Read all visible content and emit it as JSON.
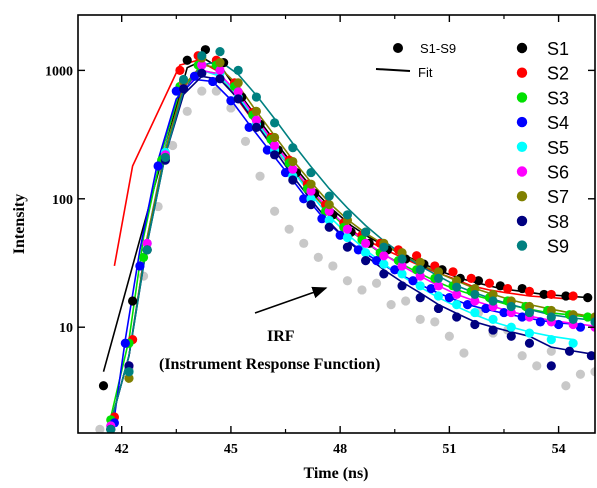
{
  "chart_data": {
    "type": "scatter",
    "xlabel": "Time (ns)",
    "ylabel": "Intensity",
    "xlim": [
      40.8,
      55.0
    ],
    "ylim": [
      1.5,
      2700
    ],
    "yscale": "log",
    "xticks": [
      42,
      45,
      48,
      51,
      54
    ],
    "xtick_labels": [
      "42",
      "45",
      "48",
      "51",
      "54"
    ],
    "yticks": [
      10,
      100,
      1000
    ],
    "ytick_labels": [
      "10",
      "100",
      "1000"
    ],
    "grid": false,
    "legend_position": "right",
    "legend_type": {
      "dot_label": "S1-S9",
      "line_label": "Fit"
    },
    "annotation": {
      "line1": "IRF",
      "line2": "(Instrument Response Function)",
      "arrow_to": [
        47.9,
        23
      ]
    },
    "irf": {
      "color": "#c8c8c8",
      "x": [
        41.4,
        41.8,
        42.2,
        42.6,
        43.0,
        43.4,
        43.8,
        44.2,
        44.6,
        45.0,
        45.4,
        45.8,
        46.2,
        46.6,
        47.0,
        47.4,
        47.8,
        48.2,
        48.6,
        49.0,
        49.4,
        49.8,
        50.2,
        50.6,
        51.0,
        51.4,
        51.8,
        52.2,
        52.6,
        53.0,
        53.4,
        53.8,
        54.2,
        54.6,
        55.0
      ],
      "y": [
        1.6,
        2.0,
        4.7,
        25,
        87,
        260,
        480,
        690,
        690,
        510,
        280,
        150,
        80,
        58,
        45,
        35,
        30,
        23,
        19.5,
        22,
        15,
        16,
        11.5,
        11,
        8.5,
        6.3,
        13,
        9,
        9.5,
        6,
        5,
        6.5,
        3.5,
        4.3,
        4.5
      ]
    },
    "series": [
      {
        "name": "S1",
        "color": "#000000",
        "x": [
          41.5,
          42.3,
          43.8,
          44.3,
          44.8,
          45.3,
          45.8,
          46.3,
          46.8,
          47.3,
          47.8,
          48.3,
          48.8,
          49.3,
          49.8,
          50.3,
          50.8,
          51.3,
          51.8,
          52.4,
          53.0,
          53.6,
          54.2,
          54.8
        ],
        "y": [
          3.5,
          16,
          1200,
          1450,
          1150,
          620,
          380,
          240,
          160,
          110,
          75,
          55,
          45,
          40,
          34,
          31,
          28,
          24,
          23,
          21,
          20,
          18,
          17.5,
          17
        ],
        "fit_y": [
          4.5,
          30,
          1050,
          1220,
          1000,
          620,
          400,
          260,
          170,
          115,
          82,
          62,
          50,
          42,
          36,
          31,
          27,
          24,
          22,
          20,
          19,
          18,
          17.5,
          17
        ]
      },
      {
        "name": "S2",
        "color": "#ff0000",
        "x": [
          41.8,
          42.3,
          43.6,
          44.1,
          44.6,
          45.1,
          45.6,
          46.1,
          46.6,
          47.1,
          47.6,
          48.1,
          48.6,
          49.1,
          49.6,
          50.1,
          50.6,
          51.1,
          51.6,
          52.1,
          52.6,
          53.2,
          53.8,
          54.4
        ],
        "y": [
          2,
          8,
          1000,
          1300,
          1200,
          800,
          470,
          300,
          200,
          130,
          90,
          65,
          52,
          45,
          40,
          36,
          30,
          27,
          24,
          22,
          20,
          19,
          18,
          17.5
        ],
        "fit_y": [
          30,
          180,
          1100,
          1200,
          1000,
          640,
          410,
          270,
          180,
          120,
          85,
          63,
          50,
          42,
          36,
          31,
          27,
          24,
          21,
          19.5,
          18.5,
          17.5,
          17,
          16.5
        ]
      },
      {
        "name": "S3",
        "color": "#00e000",
        "x": [
          41.7,
          42.2,
          42.6,
          43.1,
          43.6,
          44.1,
          44.6,
          45.1,
          45.6,
          46.1,
          46.6,
          47.1,
          47.6,
          48.1,
          48.6,
          49.1,
          49.6,
          50.1,
          50.6,
          51.1,
          51.6,
          52.1,
          52.6,
          53.1,
          53.7,
          54.3,
          54.8
        ],
        "y": [
          1.9,
          7.5,
          35,
          200,
          750,
          1100,
          1100,
          750,
          450,
          290,
          190,
          120,
          80,
          60,
          48,
          38,
          33,
          28,
          24,
          21,
          19,
          17,
          16,
          14.5,
          13.5,
          12.5,
          12
        ],
        "fit_y": [
          2,
          8,
          50,
          230,
          700,
          1000,
          950,
          680,
          440,
          290,
          190,
          125,
          85,
          62,
          48,
          38,
          32,
          27,
          23,
          20,
          18,
          16.5,
          15,
          14,
          13,
          12.5,
          12
        ]
      },
      {
        "name": "S4",
        "color": "#0000ff",
        "x": [
          41.8,
          42.1,
          42.5,
          43.0,
          43.5,
          44.0,
          44.5,
          45.0,
          45.5,
          46.0,
          46.5,
          47.0,
          47.5,
          48.0,
          48.5,
          49.0,
          49.5,
          50.0,
          50.5,
          51.0,
          51.5,
          52.0,
          52.5,
          53.0,
          53.5,
          54.0,
          54.6
        ],
        "y": [
          1.8,
          7.5,
          30,
          180,
          690,
          900,
          820,
          580,
          360,
          240,
          160,
          100,
          70,
          52,
          40,
          33,
          28,
          23,
          20,
          17,
          15,
          14,
          13,
          12,
          11,
          10.5,
          10
        ],
        "fit_y": [
          2,
          8,
          40,
          200,
          600,
          850,
          820,
          590,
          380,
          250,
          165,
          108,
          73,
          53,
          41,
          33,
          27,
          23,
          19.5,
          17,
          15,
          13.8,
          12.8,
          12,
          11.3,
          10.8,
          10.5
        ]
      },
      {
        "name": "S5",
        "color": "#00ffff",
        "x": [
          41.7,
          42.2,
          42.7,
          43.2,
          43.7,
          44.2,
          44.7,
          45.2,
          45.7,
          46.2,
          46.7,
          47.2,
          47.7,
          48.2,
          48.7,
          49.2,
          49.7,
          50.2,
          50.7,
          51.2,
          51.7,
          52.2,
          52.7,
          53.2,
          53.8,
          54.4
        ],
        "y": [
          1.7,
          4.5,
          45,
          230,
          800,
          1100,
          950,
          620,
          380,
          240,
          150,
          100,
          68,
          50,
          38,
          31,
          26,
          21,
          17.5,
          15,
          13,
          11.5,
          10,
          9,
          8,
          7.5
        ],
        "fit_y": [
          1.8,
          6,
          50,
          250,
          720,
          1000,
          900,
          630,
          400,
          255,
          165,
          108,
          73,
          53,
          40,
          31,
          25,
          20.5,
          17,
          14.5,
          12.5,
          11,
          10,
          9.2,
          8.5,
          8
        ]
      },
      {
        "name": "S6",
        "color": "#ff00ff",
        "x": [
          41.7,
          42.2,
          42.7,
          43.2,
          43.7,
          44.2,
          44.7,
          45.2,
          45.7,
          46.2,
          46.7,
          47.2,
          47.7,
          48.2,
          48.7,
          49.2,
          49.7,
          50.2,
          50.7,
          51.2,
          51.7,
          52.2,
          52.7,
          53.2,
          53.8,
          54.4,
          55.0
        ],
        "y": [
          1.7,
          5,
          45,
          220,
          800,
          1100,
          1000,
          680,
          410,
          260,
          170,
          115,
          80,
          58,
          45,
          36,
          30,
          25,
          21,
          18,
          16,
          14.5,
          13,
          12,
          11,
          10.5,
          10
        ],
        "fit_y": [
          1.8,
          6,
          50,
          240,
          720,
          1000,
          930,
          660,
          420,
          270,
          175,
          118,
          82,
          60,
          46,
          37,
          30,
          25,
          21,
          18,
          16,
          14.5,
          13.2,
          12.2,
          11.3,
          10.7,
          10.2
        ]
      },
      {
        "name": "S7",
        "color": "#808000",
        "x": [
          41.7,
          42.2,
          42.7,
          43.2,
          43.7,
          44.2,
          44.7,
          45.2,
          45.7,
          46.2,
          46.7,
          47.2,
          47.7,
          48.2,
          48.7,
          49.2,
          49.7,
          50.2,
          50.7,
          51.2,
          51.7,
          52.2,
          52.7,
          53.2,
          53.8,
          54.4,
          55.0
        ],
        "y": [
          1.6,
          4,
          40,
          210,
          820,
          1250,
          1150,
          800,
          480,
          300,
          195,
          130,
          90,
          68,
          55,
          45,
          38,
          32,
          27,
          23,
          20,
          18,
          16,
          14.5,
          13.5,
          12.5,
          12
        ],
        "fit_y": [
          1.8,
          6,
          50,
          240,
          760,
          1100,
          1050,
          760,
          480,
          310,
          200,
          135,
          93,
          69,
          54,
          44,
          37,
          31,
          26.5,
          23,
          20,
          18,
          16.3,
          15,
          13.8,
          12.8,
          12
        ]
      },
      {
        "name": "S8",
        "color": "#000080",
        "x": [
          41.7,
          42.2,
          42.7,
          43.2,
          43.7,
          44.2,
          44.7,
          45.2,
          45.7,
          46.2,
          46.7,
          47.2,
          47.7,
          48.2,
          48.7,
          49.2,
          49.7,
          50.2,
          50.7,
          51.2,
          51.7,
          52.2,
          52.7,
          53.2,
          53.8,
          54.3,
          54.9
        ],
        "y": [
          1.6,
          5,
          40,
          200,
          720,
          950,
          860,
          600,
          360,
          220,
          140,
          90,
          60,
          42,
          33,
          26,
          21,
          17,
          14,
          12,
          10.5,
          9.5,
          8.5,
          7.5,
          5,
          6.5,
          6
        ],
        "fit_y": [
          1.8,
          6,
          45,
          220,
          650,
          900,
          850,
          600,
          380,
          240,
          150,
          98,
          66,
          47,
          36,
          28,
          22.5,
          18.5,
          15,
          12.8,
          11,
          10,
          9.2,
          8.5,
          7,
          6.6,
          6.2
        ]
      },
      {
        "name": "S9",
        "color": "#008080",
        "x": [
          41.7,
          42.2,
          42.7,
          43.2,
          43.7,
          44.2,
          44.7,
          45.2,
          45.7,
          46.2,
          46.7,
          47.2,
          47.7,
          48.2,
          48.7,
          49.2,
          49.7,
          50.2,
          50.7,
          51.2,
          51.7,
          52.2,
          52.7,
          53.2,
          53.8,
          54.4,
          55.0
        ],
        "y": [
          1.6,
          4.5,
          40,
          210,
          850,
          1300,
          1400,
          1000,
          620,
          390,
          250,
          160,
          105,
          75,
          55,
          42,
          34,
          28,
          24,
          20.5,
          18,
          16,
          14.5,
          13,
          12,
          11.5,
          11
        ],
        "fit_y": [
          1.8,
          6,
          45,
          220,
          700,
          1100,
          1180,
          930,
          640,
          420,
          270,
          178,
          120,
          85,
          62,
          47,
          37,
          30,
          25,
          21,
          18.5,
          16.5,
          15,
          13.7,
          12.5,
          11.8,
          11.3
        ]
      }
    ]
  }
}
